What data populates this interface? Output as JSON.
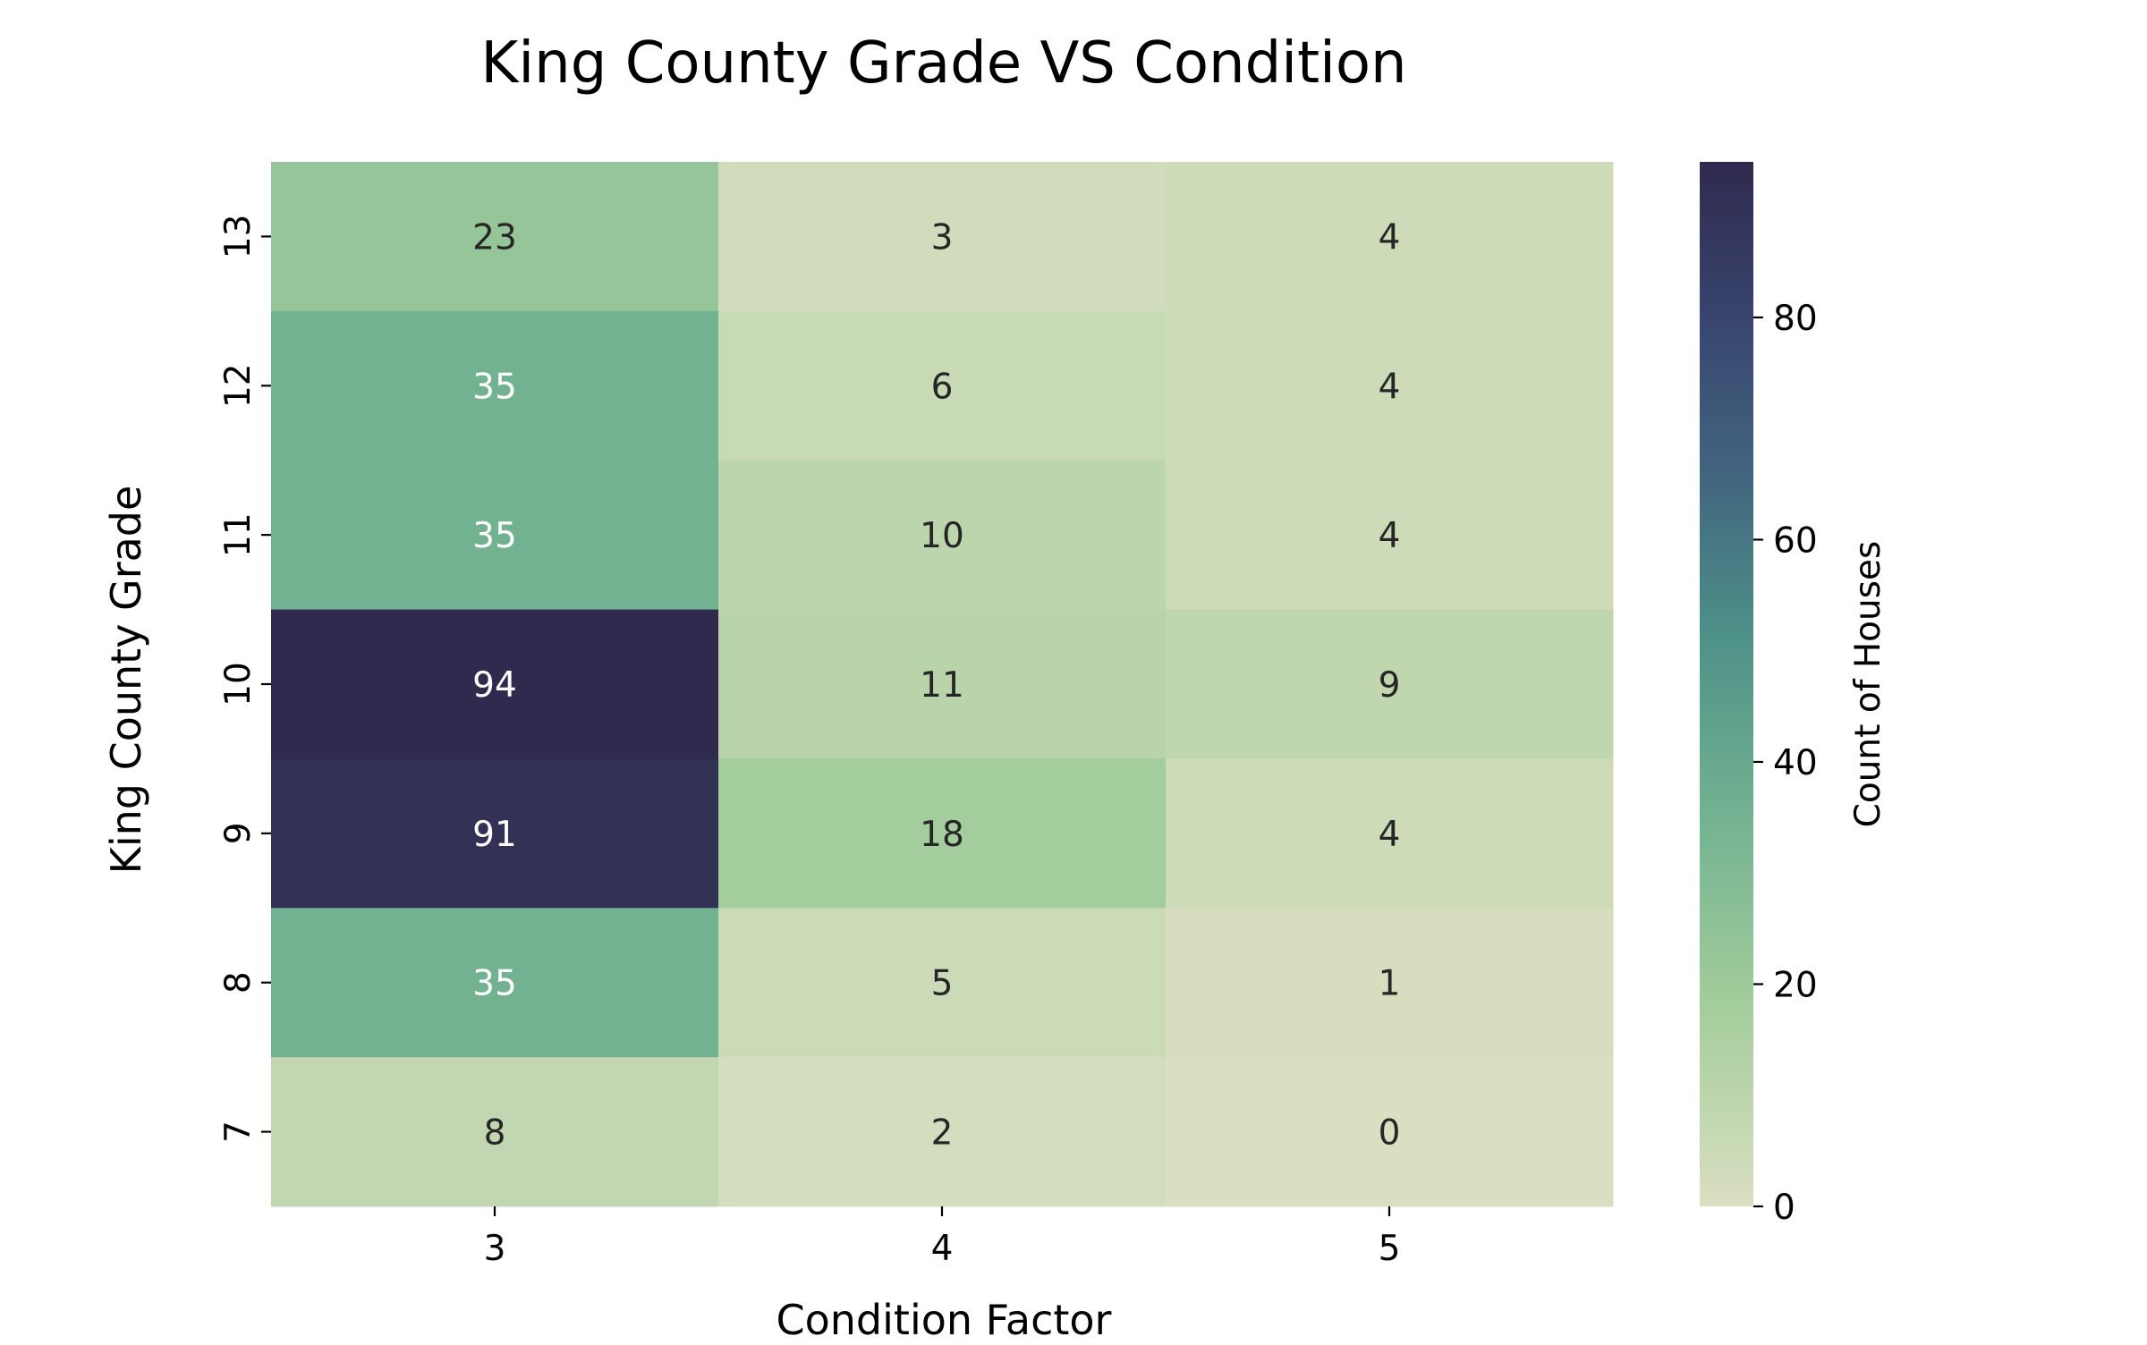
{
  "chart_data": {
    "type": "heatmap",
    "title": "King County Grade VS Condition",
    "xlabel": "Condition Factor",
    "ylabel": "King County Grade",
    "x_categories": [
      "3",
      "4",
      "5"
    ],
    "y_categories": [
      "13",
      "12",
      "11",
      "10",
      "9",
      "8",
      "7"
    ],
    "values": [
      [
        23,
        3,
        4
      ],
      [
        35,
        6,
        4
      ],
      [
        35,
        10,
        4
      ],
      [
        94,
        11,
        9
      ],
      [
        91,
        18,
        4
      ],
      [
        35,
        5,
        1
      ],
      [
        8,
        2,
        0
      ]
    ],
    "colorbar": {
      "label": "Count of Houses",
      "range": [
        0,
        94
      ],
      "ticks": [
        0,
        20,
        40,
        60,
        80
      ]
    },
    "colormap_stops": [
      {
        "v": 0.0,
        "color": "#dadfc2"
      },
      {
        "v": 0.2,
        "color": "#a1cc9a"
      },
      {
        "v": 0.38,
        "color": "#71b191"
      },
      {
        "v": 0.55,
        "color": "#4d9088"
      },
      {
        "v": 0.7,
        "color": "#42657f"
      },
      {
        "v": 0.85,
        "color": "#38456f"
      },
      {
        "v": 1.0,
        "color": "#302a4e"
      }
    ],
    "text_colors": {
      "dark": "#262626",
      "light": "#ffffff"
    },
    "grid": false,
    "legend": "none"
  }
}
